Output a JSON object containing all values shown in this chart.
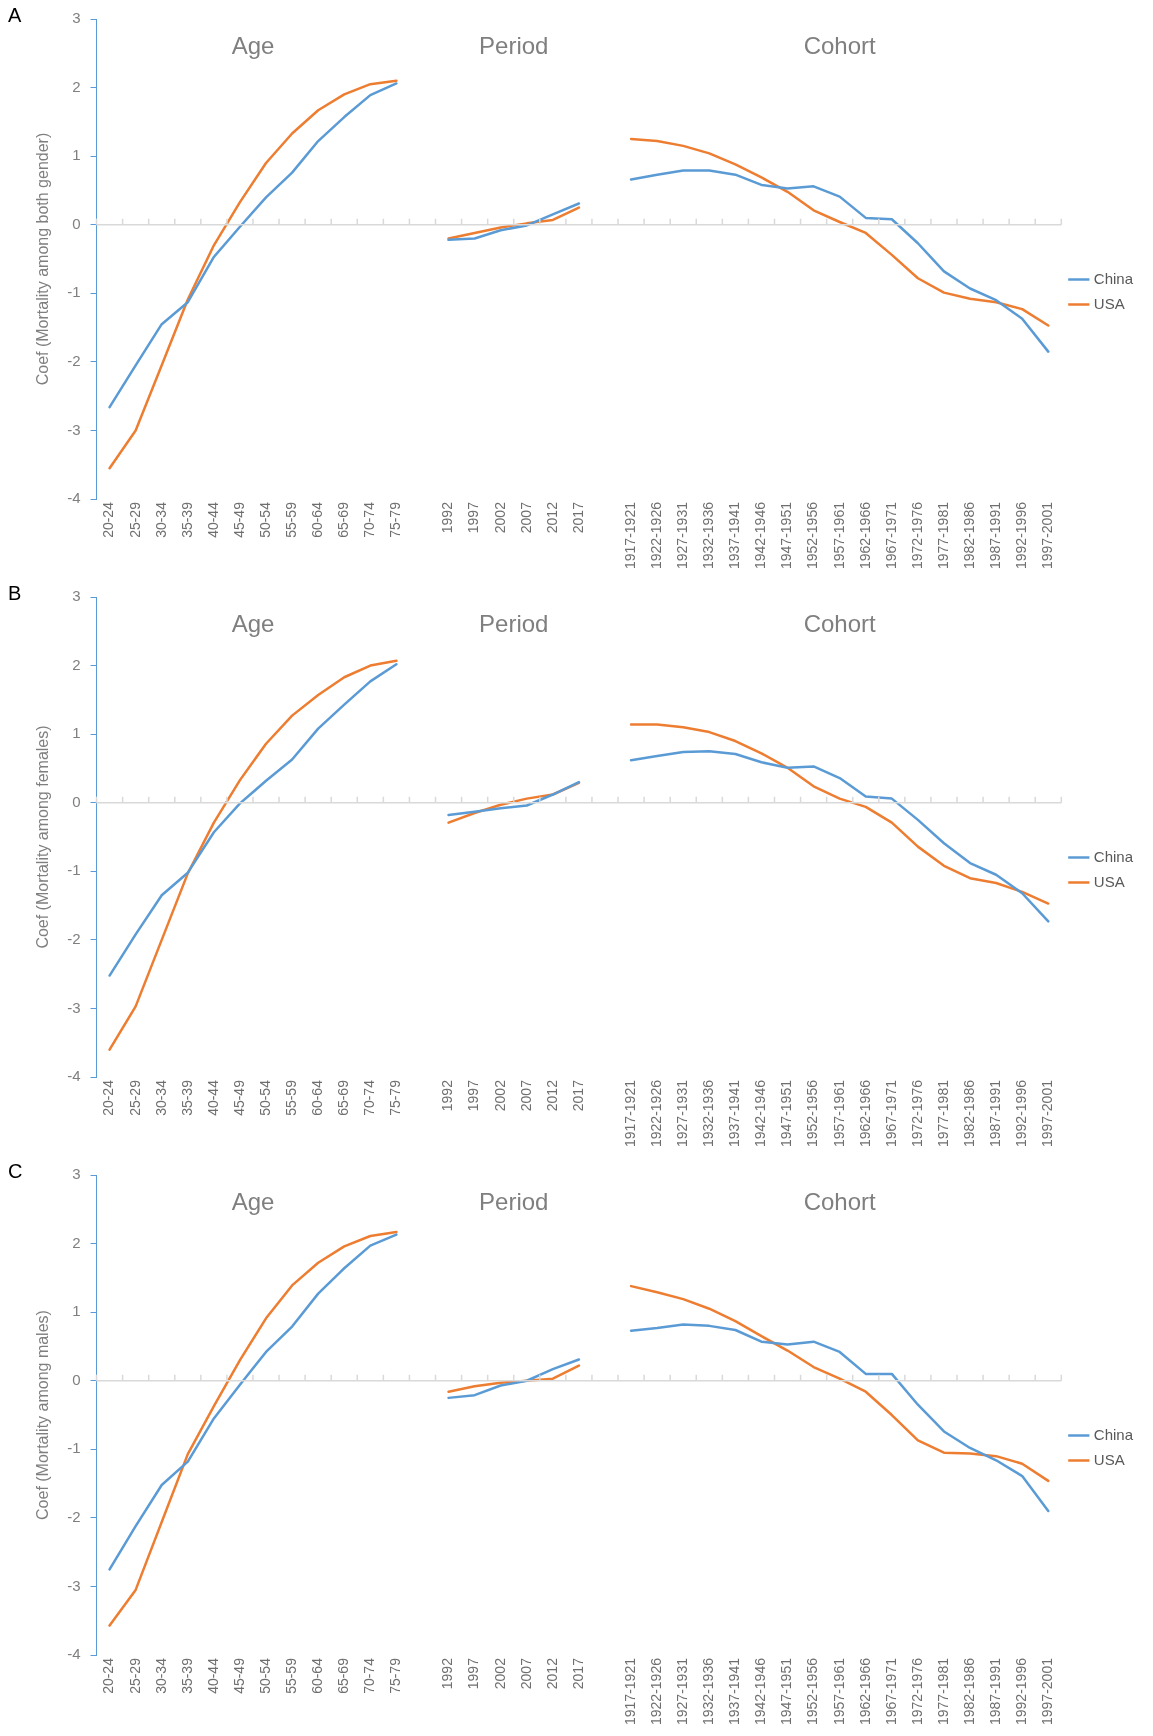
{
  "chart_data": [
    {
      "type": "line",
      "title": "A",
      "ylabel": "Coef (Mortality among both gender)",
      "categories": [
        "20-24",
        "25-29",
        "30-34",
        "35-39",
        "40-44",
        "45-49",
        "50-54",
        "55-59",
        "60-64",
        "65-69",
        "70-74",
        "75-79",
        null,
        "1992",
        "1997",
        "2002",
        "2007",
        "2012",
        "2017",
        null,
        "1917-1921",
        "1922-1926",
        "1927-1931",
        "1932-1936",
        "1937-1941",
        "1942-1946",
        "1947-1951",
        "1952-1956",
        "1957-1961",
        "1962-1966",
        "1967-1971",
        "1972-1976",
        "1977-1981",
        "1982-1986",
        "1987-1991",
        "1992-1996",
        "1997-2001"
      ],
      "series": [
        {
          "name": "China",
          "color": "#5b9bd5",
          "values": [
            -2.66,
            -2.05,
            -1.45,
            -1.13,
            -0.47,
            -0.03,
            0.4,
            0.76,
            1.22,
            1.57,
            1.89,
            2.06,
            null,
            -0.22,
            -0.2,
            -0.08,
            -0.01,
            0.15,
            0.31,
            null,
            0.66,
            0.73,
            0.79,
            0.79,
            0.73,
            0.58,
            0.53,
            0.56,
            0.41,
            0.1,
            0.08,
            -0.27,
            -0.68,
            -0.93,
            -1.1,
            -1.37,
            -1.85
          ]
        },
        {
          "name": "USA",
          "color": "#ed7d31",
          "values": [
            -3.55,
            -3.0,
            -2.05,
            -1.09,
            -0.3,
            0.33,
            0.9,
            1.33,
            1.67,
            1.9,
            2.05,
            2.1,
            null,
            -0.2,
            -0.12,
            -0.04,
            0.02,
            0.07,
            0.25,
            null,
            1.25,
            1.22,
            1.15,
            1.04,
            0.88,
            0.69,
            0.48,
            0.21,
            0.04,
            -0.12,
            -0.44,
            -0.78,
            -0.99,
            -1.08,
            -1.13,
            -1.23,
            -1.47
          ]
        }
      ],
      "ylim": [
        -4,
        3
      ],
      "yticks": [
        -4,
        -3,
        -2,
        -1,
        0,
        1,
        2,
        3
      ],
      "grid": false,
      "legend": "right",
      "marker": "none",
      "line_style": "solid",
      "ref_lines": [
        {
          "axis": "y",
          "value": 0,
          "color": "#d9d9d9"
        }
      ],
      "annotations": [
        "Age",
        "Period",
        "Cohort"
      ]
    },
    {
      "type": "line",
      "title": "B",
      "ylabel": "Coef (Mortality among females)",
      "categories": [
        "20-24",
        "25-29",
        "30-34",
        "35-39",
        "40-44",
        "45-49",
        "50-54",
        "55-59",
        "60-64",
        "65-69",
        "70-74",
        "75-79",
        null,
        "1992",
        "1997",
        "2002",
        "2007",
        "2012",
        "2017",
        null,
        "1917-1921",
        "1922-1926",
        "1927-1931",
        "1932-1936",
        "1937-1941",
        "1942-1946",
        "1947-1951",
        "1952-1956",
        "1957-1961",
        "1962-1966",
        "1967-1971",
        "1972-1976",
        "1977-1981",
        "1982-1986",
        "1987-1991",
        "1992-1996",
        "1997-2001"
      ],
      "series": [
        {
          "name": "China",
          "color": "#5b9bd5",
          "values": [
            -2.52,
            -1.92,
            -1.35,
            -1.02,
            -0.43,
            -0.01,
            0.32,
            0.63,
            1.08,
            1.43,
            1.77,
            2.02,
            null,
            -0.18,
            -0.13,
            -0.08,
            -0.04,
            0.12,
            0.3,
            null,
            0.62,
            0.68,
            0.74,
            0.75,
            0.71,
            0.59,
            0.51,
            0.53,
            0.36,
            0.09,
            0.06,
            -0.25,
            -0.59,
            -0.88,
            -1.05,
            -1.32,
            -1.73
          ]
        },
        {
          "name": "USA",
          "color": "#ed7d31",
          "values": [
            -3.6,
            -2.97,
            -2.0,
            -1.03,
            -0.29,
            0.33,
            0.86,
            1.27,
            1.57,
            1.83,
            2.0,
            2.07,
            null,
            -0.29,
            -0.15,
            -0.03,
            0.06,
            0.12,
            0.29,
            null,
            1.14,
            1.14,
            1.1,
            1.03,
            0.9,
            0.72,
            0.51,
            0.24,
            0.06,
            -0.06,
            -0.29,
            -0.64,
            -0.92,
            -1.1,
            -1.17,
            -1.3,
            -1.47
          ]
        }
      ],
      "ylim": [
        -4,
        3
      ],
      "yticks": [
        -4,
        -3,
        -2,
        -1,
        0,
        1,
        2,
        3
      ],
      "grid": false,
      "legend": "right",
      "marker": "none",
      "line_style": "solid",
      "ref_lines": [
        {
          "axis": "y",
          "value": 0,
          "color": "#d9d9d9"
        }
      ],
      "annotations": [
        "Age",
        "Period",
        "Cohort"
      ]
    },
    {
      "type": "line",
      "title": "C",
      "ylabel": "Coef (Mortality among males)",
      "categories": [
        "20-24",
        "25-29",
        "30-34",
        "35-39",
        "40-44",
        "45-49",
        "50-54",
        "55-59",
        "60-64",
        "65-69",
        "70-74",
        "75-79",
        null,
        "1992",
        "1997",
        "2002",
        "2007",
        "2012",
        "2017",
        null,
        "1917-1921",
        "1922-1926",
        "1927-1931",
        "1932-1936",
        "1937-1941",
        "1942-1946",
        "1947-1951",
        "1952-1956",
        "1957-1961",
        "1962-1966",
        "1967-1971",
        "1972-1976",
        "1977-1981",
        "1982-1986",
        "1987-1991",
        "1992-1996",
        "1997-2001"
      ],
      "series": [
        {
          "name": "China",
          "color": "#5b9bd5",
          "values": [
            -2.75,
            -2.12,
            -1.52,
            -1.18,
            -0.55,
            -0.06,
            0.42,
            0.79,
            1.27,
            1.64,
            1.97,
            2.13,
            null,
            -0.25,
            -0.21,
            -0.07,
            0.0,
            0.17,
            0.31,
            null,
            0.73,
            0.77,
            0.82,
            0.8,
            0.74,
            0.57,
            0.53,
            0.57,
            0.42,
            0.1,
            0.1,
            -0.35,
            -0.74,
            -0.98,
            -1.16,
            -1.39,
            -1.9
          ]
        },
        {
          "name": "USA",
          "color": "#ed7d31",
          "values": [
            -3.57,
            -3.05,
            -2.06,
            -1.07,
            -0.37,
            0.3,
            0.91,
            1.39,
            1.72,
            1.96,
            2.11,
            2.17,
            null,
            -0.16,
            -0.08,
            -0.03,
            0.0,
            0.03,
            0.22,
            null,
            1.38,
            1.29,
            1.19,
            1.05,
            0.87,
            0.65,
            0.44,
            0.2,
            0.03,
            -0.16,
            -0.5,
            -0.87,
            -1.05,
            -1.06,
            -1.1,
            -1.21,
            -1.46
          ]
        }
      ],
      "ylim": [
        -4,
        3
      ],
      "yticks": [
        -4,
        -3,
        -2,
        -1,
        0,
        1,
        2,
        3
      ],
      "grid": false,
      "legend": "right",
      "marker": "none",
      "line_style": "solid",
      "ref_lines": [
        {
          "axis": "y",
          "value": 0,
          "color": "#d9d9d9"
        }
      ],
      "annotations": [
        "Age",
        "Period",
        "Cohort"
      ]
    }
  ]
}
